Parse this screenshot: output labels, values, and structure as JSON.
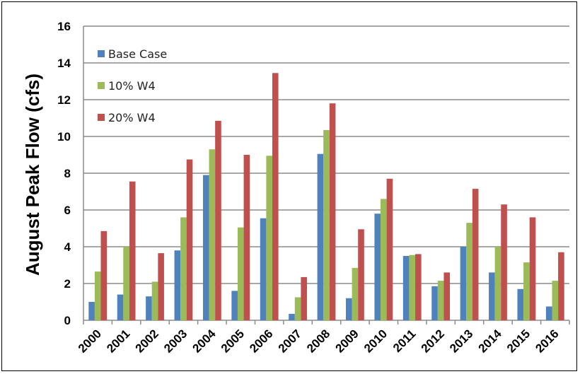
{
  "chart_data": {
    "type": "bar",
    "title": "",
    "xlabel": "",
    "ylabel": "August Peak Flow (cfs)",
    "ylim": [
      0,
      16
    ],
    "yticks": [
      0,
      2,
      4,
      6,
      8,
      10,
      12,
      14,
      16
    ],
    "grid": true,
    "legend_position": "top-left",
    "categories": [
      "2000",
      "2001",
      "2002",
      "2003",
      "2004",
      "2005",
      "2006",
      "2007",
      "2008",
      "2009",
      "2010",
      "2011",
      "2012",
      "2013",
      "2014",
      "2015",
      "2016"
    ],
    "series": [
      {
        "name": "Base Case",
        "color": "#4f81bd",
        "values": [
          1.0,
          1.4,
          1.3,
          3.8,
          7.9,
          1.6,
          5.55,
          0.35,
          9.05,
          1.2,
          5.8,
          3.5,
          1.85,
          4.0,
          2.6,
          1.7,
          0.75
        ]
      },
      {
        "name": "10% W4",
        "color": "#9bbb59",
        "values": [
          2.65,
          4.0,
          2.1,
          5.6,
          9.3,
          5.05,
          8.95,
          1.25,
          10.35,
          2.85,
          6.6,
          3.55,
          2.15,
          5.3,
          4.0,
          3.15,
          2.15
        ]
      },
      {
        "name": "20% W4",
        "color": "#c0504d",
        "values": [
          4.85,
          7.55,
          3.65,
          8.75,
          10.85,
          9.0,
          13.45,
          2.35,
          11.8,
          4.95,
          7.7,
          3.6,
          2.6,
          7.15,
          6.3,
          5.6,
          3.7
        ]
      }
    ]
  }
}
